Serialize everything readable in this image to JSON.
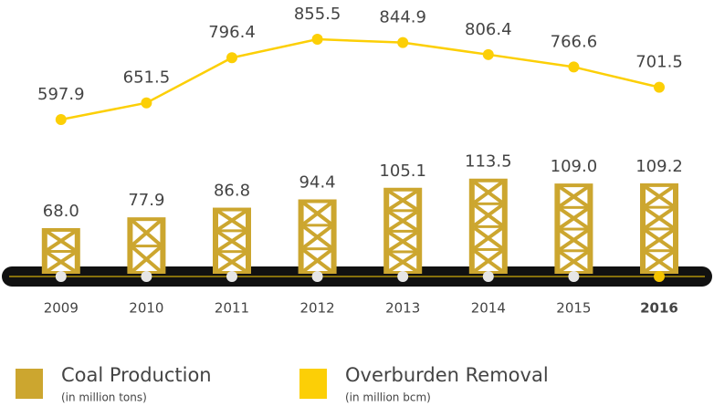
{
  "chart_data": {
    "type": "bar-line",
    "categories": [
      "2009",
      "2010",
      "2011",
      "2012",
      "2013",
      "2014",
      "2015",
      "2016"
    ],
    "category_colors": [
      "#333333",
      "#333333",
      "#333333",
      "#333333",
      "#333333",
      "#333333",
      "#333333",
      "#f5c400"
    ],
    "series": [
      {
        "name": "Coal Production",
        "note": "(in million tons)",
        "color": "#cca62f",
        "type": "bar",
        "values": [
          68.0,
          77.9,
          86.8,
          94.4,
          105.1,
          113.5,
          109.0,
          109.2
        ],
        "value_labels": [
          "68.0",
          "77.9",
          "86.8",
          "94.4",
          "105.1",
          "113.5",
          "109.0",
          "109.2"
        ]
      },
      {
        "name": "Overburden Removal",
        "note": "(in million bcm)",
        "color": "#fccf06",
        "type": "line",
        "axis": "y2",
        "values": [
          597.9,
          651.5,
          796.4,
          855.5,
          844.9,
          806.4,
          766.6,
          701.5
        ],
        "value_labels": [
          "597.9",
          "651.5",
          "796.4",
          "855.5",
          "844.9",
          "806.4",
          "766.6",
          "701.5"
        ]
      }
    ],
    "ylim": [
      26,
      261
    ],
    "y2lim": [
      103,
      923
    ]
  }
}
